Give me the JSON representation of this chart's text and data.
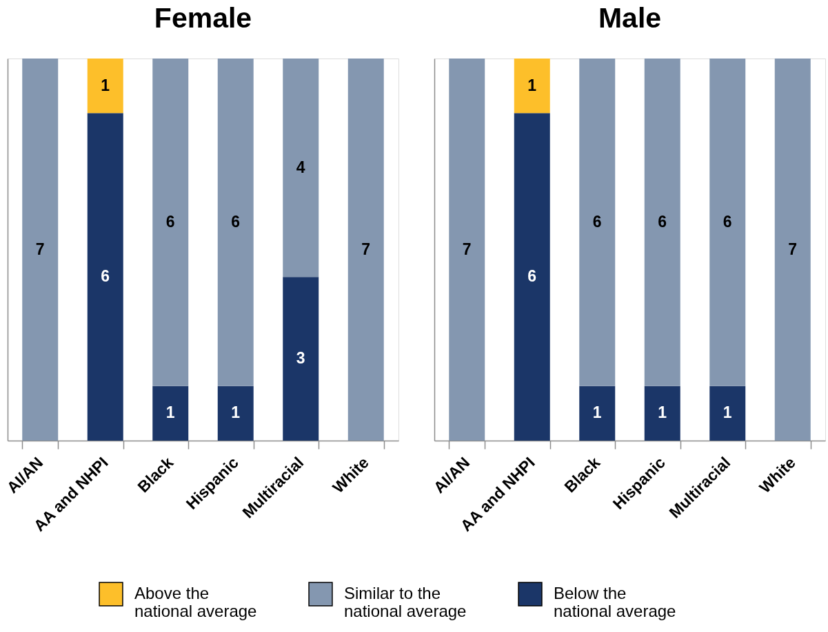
{
  "chart_data": [
    {
      "type": "bar",
      "title": "Female",
      "categories": [
        "AI/AN",
        "AA and NHPI",
        "Black",
        "Hispanic",
        "Multiracial",
        "White"
      ],
      "series": [
        {
          "name": "Below the national average",
          "color": "#1b3668",
          "values": [
            null,
            6,
            1,
            1,
            3,
            null
          ]
        },
        {
          "name": "Similar to the national average",
          "color": "#8497b0",
          "values": [
            7,
            null,
            6,
            6,
            4,
            7
          ]
        },
        {
          "name": "Above the national average",
          "color": "#fdbf2a",
          "values": [
            null,
            1,
            null,
            null,
            null,
            null
          ]
        }
      ],
      "stacked": true,
      "data_labels": true,
      "ylim": [
        0,
        7
      ],
      "tick_labels": "x",
      "legend": "bottom"
    },
    {
      "type": "bar",
      "title": "Male",
      "categories": [
        "AI/AN",
        "AA and NHPI",
        "Black",
        "Hispanic",
        "Multiracial",
        "White"
      ],
      "series": [
        {
          "name": "Below the national average",
          "color": "#1b3668",
          "values": [
            null,
            6,
            1,
            1,
            1,
            null
          ]
        },
        {
          "name": "Similar to the national average",
          "color": "#8497b0",
          "values": [
            7,
            null,
            6,
            6,
            6,
            7
          ]
        },
        {
          "name": "Above the national average",
          "color": "#fdbf2a",
          "values": [
            null,
            1,
            null,
            null,
            null,
            null
          ]
        }
      ],
      "stacked": true,
      "data_labels": true,
      "ylim": [
        0,
        7
      ],
      "tick_labels": "x",
      "legend": "bottom"
    }
  ]
}
